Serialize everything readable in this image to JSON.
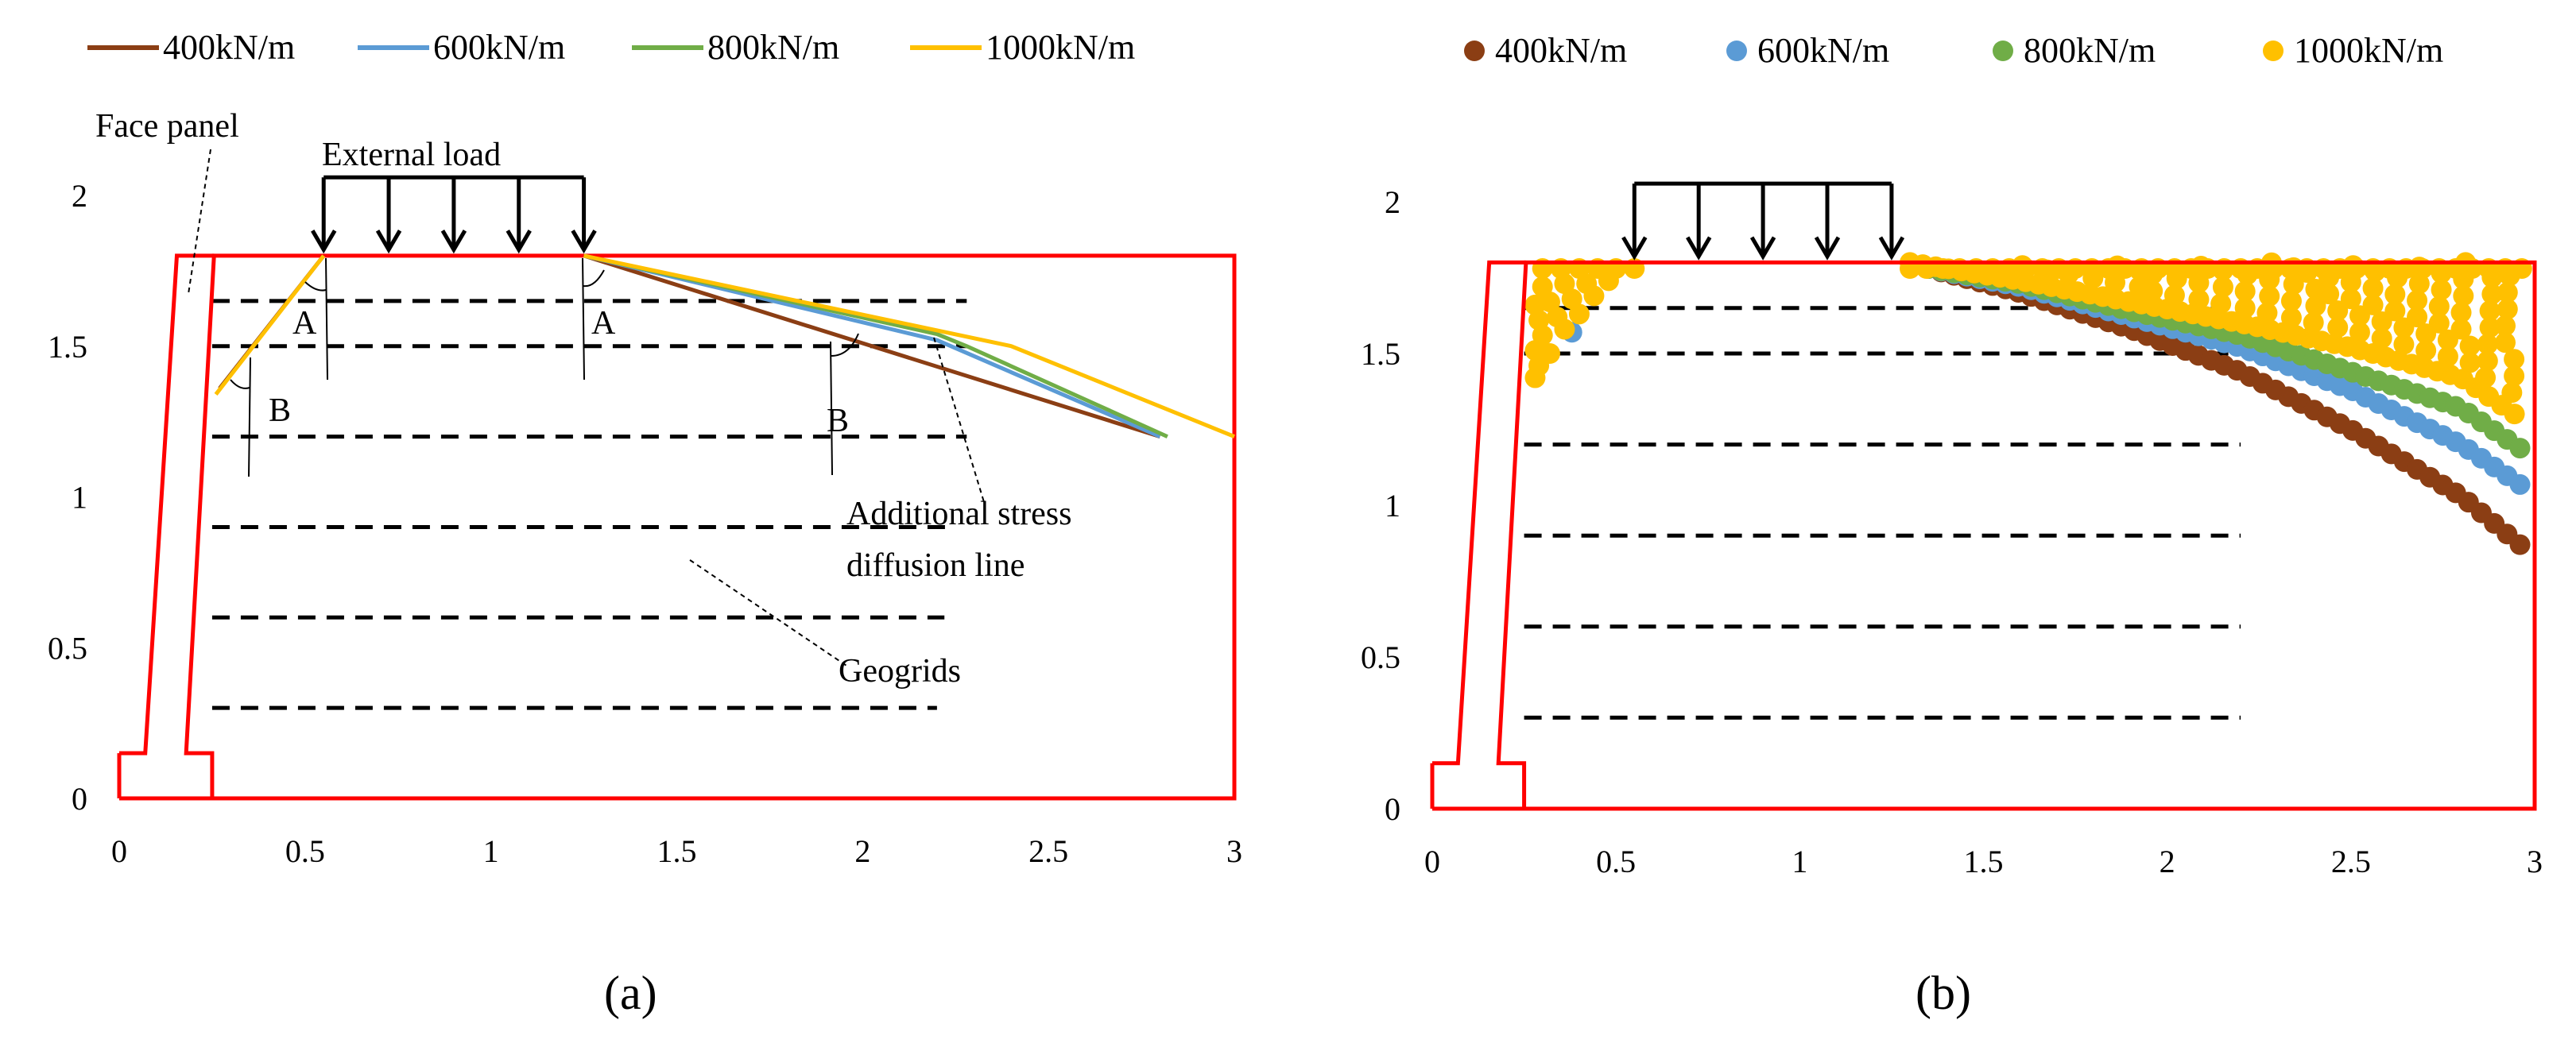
{
  "colors": {
    "s400": "#8b3e14",
    "s600": "#5b9bd5",
    "s800": "#70ad47",
    "s1000": "#ffc000",
    "wall": "#ff0000",
    "black": "#000000"
  },
  "chart_data": [
    {
      "id": "a",
      "type": "line",
      "caption": "(a)",
      "xlim": [
        0,
        3
      ],
      "ylim": [
        0,
        2
      ],
      "x_ticks": [
        "0",
        "0.5",
        "1",
        "1.5",
        "2",
        "2.5",
        "3"
      ],
      "y_ticks": [
        "0",
        "0.5",
        "1",
        "1.5",
        "2"
      ],
      "legend": [
        "400kN/m",
        "600kN/m",
        "800kN/m",
        "1000kN/m"
      ],
      "series": [
        {
          "name": "400kN/m",
          "color_key": "s400",
          "points": [
            [
              1.25,
              1.8
            ],
            [
              2.8,
              1.2
            ]
          ]
        },
        {
          "name": "600kN/m",
          "color_key": "s600",
          "points": [
            [
              1.25,
              1.8
            ],
            [
              2.2,
              1.52
            ],
            [
              2.8,
              1.2
            ]
          ]
        },
        {
          "name": "800kN/m",
          "color_key": "s800",
          "points": [
            [
              1.25,
              1.8
            ],
            [
              2.2,
              1.54
            ],
            [
              2.28,
              1.5
            ],
            [
              2.82,
              1.2
            ]
          ]
        },
        {
          "name": "1000kN/m",
          "color_key": "s1000",
          "points": [
            [
              1.25,
              1.8
            ],
            [
              2.4,
              1.5
            ],
            [
              3.0,
              1.2
            ]
          ]
        }
      ],
      "left_lines": [
        {
          "color_key": "s400",
          "points": [
            [
              0.55,
              1.8
            ],
            [
              0.27,
              1.36
            ]
          ]
        },
        {
          "color_key": "s1000",
          "points": [
            [
              0.55,
              1.8
            ],
            [
              0.26,
              1.34
            ]
          ]
        }
      ],
      "geogrid_levels": [
        {
          "y": 1.65,
          "x_end": 2.28
        },
        {
          "y": 1.5,
          "x_end": 2.28
        },
        {
          "y": 1.2,
          "x_end": 2.28
        },
        {
          "y": 0.9,
          "x_end": 2.25
        },
        {
          "y": 0.6,
          "x_end": 2.22
        },
        {
          "y": 0.3,
          "x_end": 2.2
        }
      ],
      "load_extent": [
        0.55,
        1.25
      ],
      "annotations": {
        "face_panel": "Face panel",
        "external_load": "External load",
        "stress_line": [
          "Additional stress",
          "diffusion line"
        ],
        "geogrids": "Geogrids",
        "angle_a": "A",
        "angle_b": "B"
      }
    },
    {
      "id": "b",
      "type": "scatter",
      "caption": "(b)",
      "xlim": [
        0,
        3
      ],
      "ylim": [
        0,
        2
      ],
      "x_ticks": [
        "0",
        "0.5",
        "1",
        "1.5",
        "2",
        "2.5",
        "3"
      ],
      "y_ticks": [
        "0",
        "0.5",
        "1",
        "1.5",
        "2"
      ],
      "legend": [
        "400kN/m",
        "600kN/m",
        "800kN/m",
        "1000kN/m"
      ],
      "series": [
        {
          "name": "400kN/m",
          "color_key": "s400",
          "lower_boundary": [
            [
              1.35,
              1.78
            ],
            [
              1.6,
              1.7
            ],
            [
              1.9,
              1.58
            ],
            [
              2.2,
              1.44
            ],
            [
              2.5,
              1.25
            ],
            [
              2.8,
              1.03
            ],
            [
              2.97,
              0.86
            ]
          ]
        },
        {
          "name": "600kN/m",
          "color_key": "s600",
          "lower_boundary": [
            [
              1.35,
              1.78
            ],
            [
              1.6,
              1.72
            ],
            [
              1.9,
              1.62
            ],
            [
              2.2,
              1.52
            ],
            [
              2.5,
              1.38
            ],
            [
              2.8,
              1.2
            ],
            [
              2.97,
              1.06
            ]
          ]
        },
        {
          "name": "800kN/m",
          "color_key": "s800",
          "lower_boundary": [
            [
              1.35,
              1.78
            ],
            [
              1.6,
              1.73
            ],
            [
              1.9,
              1.64
            ],
            [
              2.2,
              1.56
            ],
            [
              2.5,
              1.44
            ],
            [
              2.8,
              1.32
            ],
            [
              2.97,
              1.18
            ]
          ]
        },
        {
          "name": "1000kN/m",
          "color_key": "s1000",
          "lower_boundary": [
            [
              1.3,
              1.8
            ],
            [
              1.6,
              1.74
            ],
            [
              1.9,
              1.67
            ],
            [
              2.2,
              1.6
            ],
            [
              2.5,
              1.52
            ],
            [
              2.8,
              1.42
            ],
            [
              2.97,
              1.28
            ]
          ]
        }
      ],
      "left_cluster": {
        "x_range": [
          0.27,
          0.55
        ],
        "y_range": [
          1.4,
          1.8
        ]
      },
      "geogrid_levels": [
        {
          "y": 1.65,
          "x_end": 2.2
        },
        {
          "y": 1.5,
          "x_end": 2.2
        },
        {
          "y": 1.2,
          "x_end": 2.2
        },
        {
          "y": 0.9,
          "x_end": 2.2
        },
        {
          "y": 0.6,
          "x_end": 2.2
        },
        {
          "y": 0.3,
          "x_end": 2.2
        }
      ],
      "load_extent": [
        0.55,
        1.25
      ]
    }
  ]
}
